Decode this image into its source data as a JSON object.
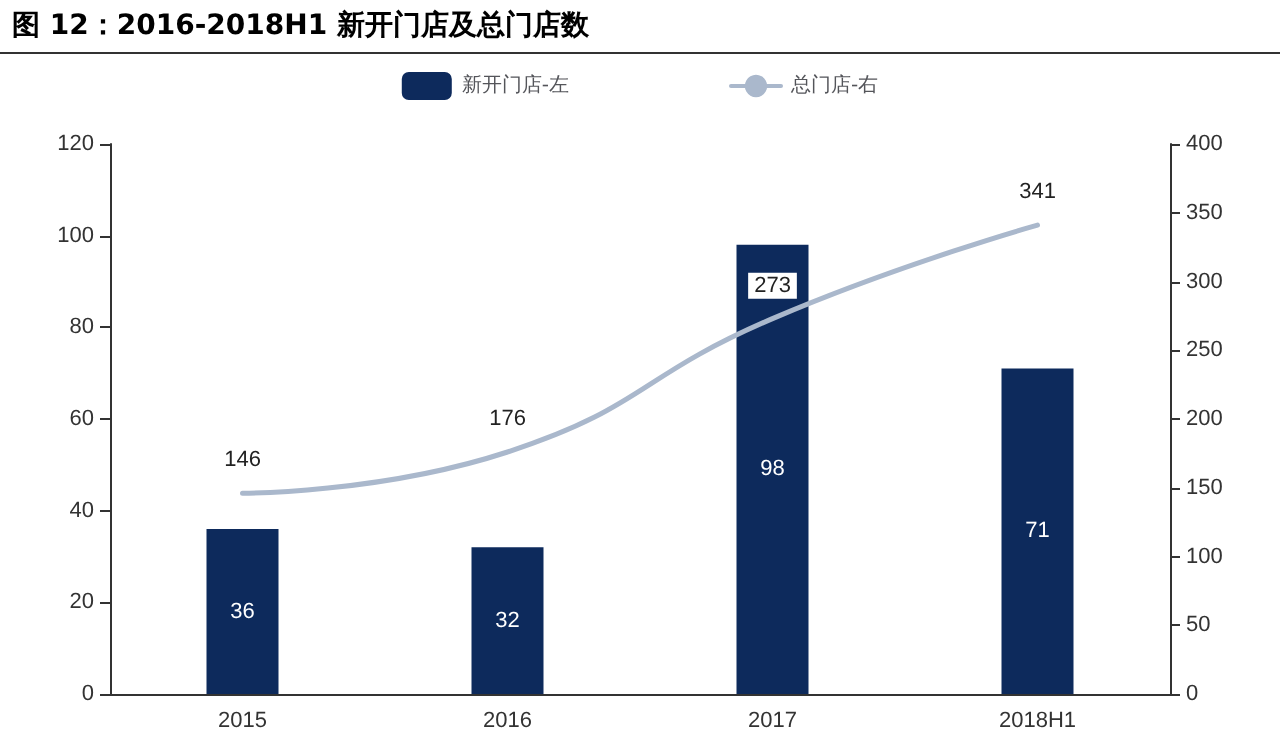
{
  "chart_data": {
    "type": "bar",
    "title": "图 12：2016-2018H1 新开门店及总门店数",
    "categories": [
      "2015",
      "2016",
      "2017",
      "2018H1"
    ],
    "series": [
      {
        "name": "新开门店-左",
        "color": "#0d2a5c",
        "values": [
          36,
          32,
          98,
          71
        ]
      },
      {
        "name": "总门店-右",
        "type": "line",
        "axis": "y2",
        "color": "#aab8cc",
        "values": [
          146,
          176,
          273,
          341
        ]
      }
    ],
    "ylim": [
      0,
      120
    ],
    "yticks": [
      0,
      20,
      40,
      60,
      80,
      100,
      120
    ],
    "y2lim": [
      0,
      400
    ],
    "y2ticks": [
      0,
      50,
      100,
      150,
      200,
      250,
      300,
      350,
      400
    ],
    "data_labels": true,
    "legend": "top",
    "grid": false,
    "marker": "none",
    "line_style": "solid"
  }
}
